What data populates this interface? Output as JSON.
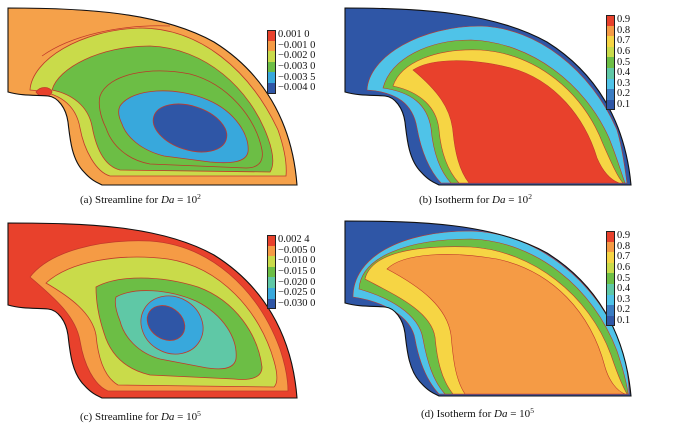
{
  "panels": [
    {
      "id": "a",
      "caption_prefix": "(a) Streamline for ",
      "caption_var": "Da",
      "caption_eq": " = 10",
      "caption_exp": "2",
      "legend": [
        {
          "label": "0.001 0",
          "color": "#e8412c"
        },
        {
          "label": "−0.001 0",
          "color": "#f59b45"
        },
        {
          "label": "−0.002 0",
          "color": "#c9db4a"
        },
        {
          "label": "−0.003 0",
          "color": "#6cbe45"
        },
        {
          "label": "−0.003 5",
          "color": "#38a8dc"
        },
        {
          "label": "−0.004 0",
          "color": "#2f56a6"
        }
      ]
    },
    {
      "id": "b",
      "caption_prefix": "(b) Isotherm for ",
      "caption_var": "Da",
      "caption_eq": " = 10",
      "caption_exp": "2",
      "legend": [
        {
          "label": "0.9",
          "color": "#e8412c"
        },
        {
          "label": "0.8",
          "color": "#f59b45"
        },
        {
          "label": "0.7",
          "color": "#f6d544"
        },
        {
          "label": "0.6",
          "color": "#c9db4a"
        },
        {
          "label": "0.5",
          "color": "#6cbe45"
        },
        {
          "label": "0.4",
          "color": "#5fc8a6"
        },
        {
          "label": "0.3",
          "color": "#4fc3e8"
        },
        {
          "label": "0.2",
          "color": "#3a7cc2"
        },
        {
          "label": "0.1",
          "color": "#2f56a6"
        }
      ]
    },
    {
      "id": "c",
      "caption_prefix": "(c) Streamline for ",
      "caption_var": "Da",
      "caption_eq": " = 10",
      "caption_exp": "5",
      "legend": [
        {
          "label": "0.002 4",
          "color": "#e8412c"
        },
        {
          "label": "−0.005 0",
          "color": "#f59b45"
        },
        {
          "label": "−0.010 0",
          "color": "#c9db4a"
        },
        {
          "label": "−0.015 0",
          "color": "#6cbe45"
        },
        {
          "label": "−0.020 0",
          "color": "#5fc8a6"
        },
        {
          "label": "−0.025 0",
          "color": "#38a8dc"
        },
        {
          "label": "−0.030 0",
          "color": "#2f56a6"
        }
      ]
    },
    {
      "id": "d",
      "caption_prefix": "(d) Isotherm for ",
      "caption_var": "Da",
      "caption_eq": " = 10",
      "caption_exp": "5",
      "legend": [
        {
          "label": "0.9",
          "color": "#e8412c"
        },
        {
          "label": "0.8",
          "color": "#f59b45"
        },
        {
          "label": "0.7",
          "color": "#f6d544"
        },
        {
          "label": "0.6",
          "color": "#c9db4a"
        },
        {
          "label": "0.5",
          "color": "#6cbe45"
        },
        {
          "label": "0.4",
          "color": "#5fc8a6"
        },
        {
          "label": "0.3",
          "color": "#4fc3e8"
        },
        {
          "label": "0.2",
          "color": "#3a7cc2"
        },
        {
          "label": "0.1",
          "color": "#2f56a6"
        }
      ]
    }
  ]
}
